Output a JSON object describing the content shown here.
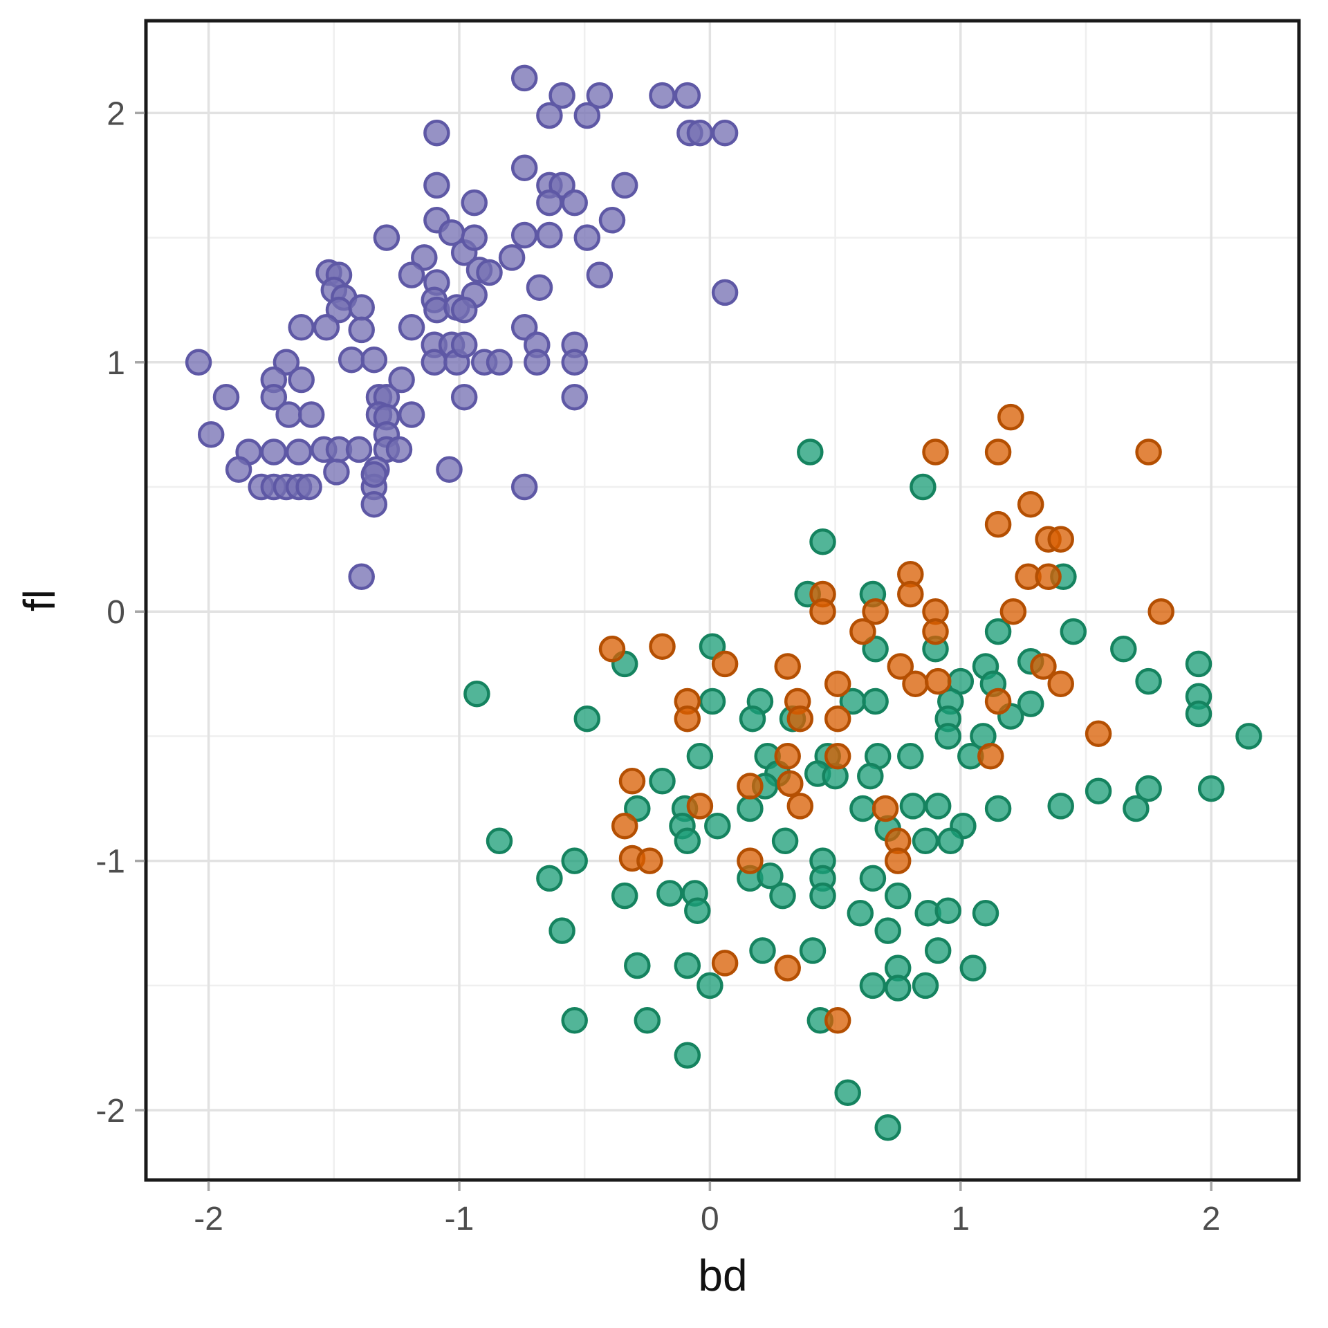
{
  "chart_data": {
    "type": "scatter",
    "title": "",
    "xlabel": "bd",
    "ylabel": "fl",
    "xlim": [
      -2.25,
      2.35
    ],
    "ylim": [
      -2.28,
      2.37
    ],
    "x_ticks": [
      -2,
      -1,
      0,
      1,
      2
    ],
    "y_ticks": [
      -2,
      -1,
      0,
      1,
      2
    ],
    "x_tick_labels": [
      "-2",
      "-1",
      "0",
      "1",
      "2"
    ],
    "y_tick_labels": [
      "-2",
      "-1",
      "0",
      "1",
      "2"
    ],
    "minor_grid_step": 0.5,
    "grid": "major and minor, light gray on white panel",
    "legend": "none",
    "marker": {
      "radius_px": 17,
      "stroke_width_px": 4.5,
      "fill_opacity": 0.76
    },
    "series": [
      {
        "name": "cluster-purple",
        "color": "#7570B3",
        "stroke": "#5E58A5",
        "points": [
          [
            -1.09,
            1.92
          ],
          [
            -1.09,
            1.71
          ],
          [
            -1.09,
            1.57
          ],
          [
            -1.03,
            1.52
          ],
          [
            -1.29,
            1.5
          ],
          [
            -1.14,
            1.42
          ],
          [
            -0.98,
            1.44
          ],
          [
            -1.19,
            1.35
          ],
          [
            -1.52,
            1.36
          ],
          [
            -1.48,
            1.35
          ],
          [
            -1.09,
            1.32
          ],
          [
            -1.5,
            1.29
          ],
          [
            -0.74,
            2.14
          ],
          [
            -0.59,
            2.07
          ],
          [
            -0.44,
            2.07
          ],
          [
            -0.19,
            2.07
          ],
          [
            -0.09,
            2.07
          ],
          [
            -0.64,
            1.99
          ],
          [
            -0.49,
            1.99
          ],
          [
            -0.08,
            1.92
          ],
          [
            -0.04,
            1.92
          ],
          [
            0.06,
            1.92
          ],
          [
            -0.74,
            1.78
          ],
          [
            -0.64,
            1.71
          ],
          [
            -0.59,
            1.71
          ],
          [
            -0.34,
            1.71
          ],
          [
            -0.94,
            1.64
          ],
          [
            -0.64,
            1.64
          ],
          [
            -0.54,
            1.64
          ],
          [
            -0.39,
            1.57
          ],
          [
            -0.94,
            1.5
          ],
          [
            -0.74,
            1.51
          ],
          [
            -0.64,
            1.51
          ],
          [
            -0.49,
            1.5
          ],
          [
            -0.79,
            1.42
          ],
          [
            -0.92,
            1.37
          ],
          [
            -0.88,
            1.36
          ],
          [
            -0.44,
            1.35
          ],
          [
            -0.68,
            1.3
          ],
          [
            0.06,
            1.28
          ],
          [
            -1.46,
            1.26
          ],
          [
            -1.48,
            1.21
          ],
          [
            -1.39,
            1.22
          ],
          [
            -1.63,
            1.14
          ],
          [
            -1.53,
            1.14
          ],
          [
            -1.39,
            1.13
          ],
          [
            -1.19,
            1.14
          ],
          [
            -1.1,
            1.25
          ],
          [
            -1.09,
            1.21
          ],
          [
            -1.01,
            1.22
          ],
          [
            -1.1,
            1.07
          ],
          [
            -1.03,
            1.07
          ],
          [
            -2.04,
            1.0
          ],
          [
            -1.69,
            1.0
          ],
          [
            -1.43,
            1.01
          ],
          [
            -1.34,
            1.01
          ],
          [
            -1.1,
            1.0
          ],
          [
            -1.01,
            1.0
          ],
          [
            -1.74,
            0.93
          ],
          [
            -1.63,
            0.93
          ],
          [
            -1.93,
            0.86
          ],
          [
            -1.74,
            0.86
          ],
          [
            -1.32,
            0.86
          ],
          [
            -1.29,
            0.86
          ],
          [
            -1.23,
            0.93
          ],
          [
            -1.68,
            0.79
          ],
          [
            -1.59,
            0.79
          ],
          [
            -1.32,
            0.79
          ],
          [
            -1.29,
            0.78
          ],
          [
            -1.19,
            0.79
          ],
          [
            -1.99,
            0.71
          ],
          [
            -1.29,
            0.71
          ],
          [
            -1.84,
            0.64
          ],
          [
            -1.74,
            0.64
          ],
          [
            -1.64,
            0.64
          ],
          [
            -1.54,
            0.65
          ],
          [
            -1.48,
            0.65
          ],
          [
            -1.4,
            0.65
          ],
          [
            -1.29,
            0.65
          ],
          [
            -1.24,
            0.65
          ],
          [
            -1.88,
            0.57
          ],
          [
            -1.49,
            0.56
          ],
          [
            -1.33,
            0.57
          ],
          [
            -1.04,
            0.57
          ],
          [
            -1.79,
            0.5
          ],
          [
            -1.74,
            0.5
          ],
          [
            -1.69,
            0.5
          ],
          [
            -1.64,
            0.5
          ],
          [
            -1.6,
            0.5
          ],
          [
            -1.34,
            0.5
          ],
          [
            -1.34,
            0.43
          ],
          [
            -0.94,
            1.27
          ],
          [
            -0.98,
            1.21
          ],
          [
            -0.74,
            1.14
          ],
          [
            -0.98,
            1.07
          ],
          [
            -0.69,
            1.07
          ],
          [
            -0.54,
            1.07
          ],
          [
            -0.9,
            1.0
          ],
          [
            -0.84,
            1.0
          ],
          [
            -0.69,
            1.0
          ],
          [
            -0.54,
            1.0
          ],
          [
            -0.98,
            0.86
          ],
          [
            -0.54,
            0.86
          ],
          [
            -0.74,
            0.5
          ],
          [
            -1.34,
            0.55
          ],
          [
            -1.39,
            0.14
          ]
        ]
      },
      {
        "name": "cluster-green",
        "color": "#1B9E77",
        "stroke": "#15835F",
        "points": [
          [
            -0.34,
            -0.21
          ],
          [
            0.01,
            -0.14
          ],
          [
            0.01,
            -0.36
          ],
          [
            -0.49,
            -0.43
          ],
          [
            -0.04,
            -0.58
          ],
          [
            -0.19,
            -0.68
          ],
          [
            0.4,
            0.64
          ],
          [
            0.85,
            0.5
          ],
          [
            0.45,
            0.28
          ],
          [
            0.39,
            0.07
          ],
          [
            0.65,
            0.07
          ],
          [
            0.66,
            -0.15
          ],
          [
            0.9,
            -0.15
          ],
          [
            1.15,
            -0.08
          ],
          [
            0.2,
            -0.36
          ],
          [
            0.57,
            -0.36
          ],
          [
            0.66,
            -0.36
          ],
          [
            1.0,
            -0.28
          ],
          [
            0.17,
            -0.43
          ],
          [
            0.33,
            -0.43
          ],
          [
            0.96,
            -0.36
          ],
          [
            1.1,
            -0.22
          ],
          [
            1.13,
            -0.29
          ],
          [
            1.2,
            -0.42
          ],
          [
            0.95,
            -0.43
          ],
          [
            0.95,
            -0.5
          ],
          [
            1.09,
            -0.5
          ],
          [
            0.23,
            -0.58
          ],
          [
            0.47,
            -0.58
          ],
          [
            0.67,
            -0.58
          ],
          [
            0.8,
            -0.58
          ],
          [
            1.04,
            -0.58
          ],
          [
            0.27,
            -0.65
          ],
          [
            0.43,
            -0.65
          ],
          [
            1.41,
            0.14
          ],
          [
            1.45,
            -0.08
          ],
          [
            1.65,
            -0.15
          ],
          [
            1.28,
            -0.2
          ],
          [
            1.75,
            -0.28
          ],
          [
            1.95,
            -0.21
          ],
          [
            1.28,
            -0.37
          ],
          [
            1.95,
            -0.34
          ],
          [
            1.95,
            -0.41
          ],
          [
            2.15,
            -0.5
          ],
          [
            -0.29,
            -0.79
          ],
          [
            -0.1,
            -0.79
          ],
          [
            -0.11,
            -0.86
          ],
          [
            0.03,
            -0.86
          ],
          [
            -0.09,
            -0.92
          ],
          [
            -0.84,
            -0.92
          ],
          [
            -0.54,
            -1.0
          ],
          [
            -0.64,
            -1.07
          ],
          [
            -0.34,
            -1.14
          ],
          [
            -0.16,
            -1.13
          ],
          [
            -0.06,
            -1.13
          ],
          [
            -0.05,
            -1.2
          ],
          [
            -0.59,
            -1.28
          ],
          [
            -0.29,
            -1.42
          ],
          [
            -0.09,
            -1.42
          ],
          [
            0.0,
            -1.5
          ],
          [
            -0.54,
            -1.64
          ],
          [
            -0.25,
            -1.64
          ],
          [
            -0.09,
            -1.78
          ],
          [
            0.22,
            -0.7
          ],
          [
            0.16,
            -0.79
          ],
          [
            0.5,
            -0.66
          ],
          [
            0.64,
            -0.66
          ],
          [
            0.61,
            -0.79
          ],
          [
            0.71,
            -0.87
          ],
          [
            0.81,
            -0.78
          ],
          [
            0.91,
            -0.78
          ],
          [
            1.01,
            -0.86
          ],
          [
            1.15,
            -0.79
          ],
          [
            0.3,
            -0.92
          ],
          [
            0.86,
            -0.92
          ],
          [
            0.96,
            -0.92
          ],
          [
            0.16,
            -1.07
          ],
          [
            0.24,
            -1.06
          ],
          [
            0.29,
            -1.14
          ],
          [
            0.45,
            -1.0
          ],
          [
            0.45,
            -1.07
          ],
          [
            0.45,
            -1.14
          ],
          [
            0.65,
            -1.07
          ],
          [
            0.75,
            -1.14
          ],
          [
            0.6,
            -1.21
          ],
          [
            0.71,
            -1.28
          ],
          [
            0.87,
            -1.21
          ],
          [
            0.95,
            -1.2
          ],
          [
            1.1,
            -1.21
          ],
          [
            0.21,
            -1.36
          ],
          [
            0.41,
            -1.36
          ],
          [
            0.91,
            -1.36
          ],
          [
            1.05,
            -1.43
          ],
          [
            0.75,
            -1.43
          ],
          [
            0.75,
            -1.51
          ],
          [
            0.65,
            -1.5
          ],
          [
            0.86,
            -1.5
          ],
          [
            0.44,
            -1.64
          ],
          [
            0.55,
            -1.93
          ],
          [
            0.71,
            -2.07
          ],
          [
            1.4,
            -0.78
          ],
          [
            1.55,
            -0.72
          ],
          [
            1.7,
            -0.79
          ],
          [
            1.75,
            -0.71
          ],
          [
            2.0,
            -0.71
          ],
          [
            -0.93,
            -0.33
          ]
        ]
      },
      {
        "name": "cluster-orange",
        "color": "#D95F02",
        "stroke": "#B44F02",
        "points": [
          [
            -0.39,
            -0.15
          ],
          [
            -0.19,
            -0.14
          ],
          [
            0.06,
            -0.21
          ],
          [
            -0.09,
            -0.36
          ],
          [
            -0.09,
            -0.43
          ],
          [
            -0.31,
            -0.68
          ],
          [
            0.9,
            0.64
          ],
          [
            1.2,
            0.78
          ],
          [
            1.15,
            0.64
          ],
          [
            1.15,
            0.35
          ],
          [
            1.28,
            0.43
          ],
          [
            0.8,
            0.15
          ],
          [
            0.8,
            0.07
          ],
          [
            0.45,
            0.07
          ],
          [
            0.45,
            0.0
          ],
          [
            0.66,
            0.0
          ],
          [
            0.61,
            -0.08
          ],
          [
            0.9,
            0.0
          ],
          [
            0.9,
            -0.08
          ],
          [
            1.21,
            0.0
          ],
          [
            0.31,
            -0.22
          ],
          [
            0.35,
            -0.36
          ],
          [
            0.76,
            -0.22
          ],
          [
            0.82,
            -0.29
          ],
          [
            0.91,
            -0.28
          ],
          [
            0.51,
            -0.29
          ],
          [
            0.51,
            -0.43
          ],
          [
            0.36,
            -0.43
          ],
          [
            1.15,
            -0.36
          ],
          [
            0.31,
            -0.58
          ],
          [
            0.51,
            -0.58
          ],
          [
            1.12,
            -0.58
          ],
          [
            1.75,
            0.64
          ],
          [
            1.35,
            0.29
          ],
          [
            1.4,
            0.29
          ],
          [
            1.27,
            0.14
          ],
          [
            1.35,
            0.14
          ],
          [
            1.8,
            0.0
          ],
          [
            1.33,
            -0.22
          ],
          [
            1.4,
            -0.29
          ],
          [
            1.55,
            -0.49
          ],
          [
            -0.34,
            -0.86
          ],
          [
            -0.04,
            -0.78
          ],
          [
            -0.31,
            -0.99
          ],
          [
            -0.24,
            -1.0
          ],
          [
            0.06,
            -1.41
          ],
          [
            0.16,
            -0.7
          ],
          [
            0.32,
            -0.69
          ],
          [
            0.36,
            -0.78
          ],
          [
            0.7,
            -0.79
          ],
          [
            0.75,
            -0.92
          ],
          [
            0.75,
            -1.0
          ],
          [
            0.16,
            -1.0
          ],
          [
            0.31,
            -1.43
          ],
          [
            0.51,
            -1.64
          ]
        ]
      }
    ]
  },
  "styles": {
    "background": "#FFFFFF",
    "panel_background": "#FFFFFF",
    "grid_major_color": "#E2E2E2",
    "grid_minor_color": "#EFEFEF",
    "panel_border_color": "#1A1A1A",
    "tick_mark_color": "#A6A6A6",
    "tick_label_color": "#4D4D4D",
    "axis_title_color": "#111111"
  }
}
